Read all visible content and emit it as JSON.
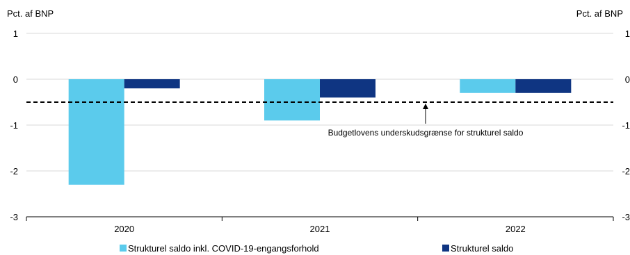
{
  "chart_data": {
    "type": "bar",
    "title": "",
    "ylabel_left": "Pct. af BNP",
    "ylabel_right": "Pct. af BNP",
    "categories": [
      "2020",
      "2021",
      "2022"
    ],
    "series": [
      {
        "name": "Strukturel saldo inkl. COVID-19-engangsforhold",
        "values": [
          -2.3,
          -0.9,
          -0.3
        ]
      },
      {
        "name": "Strukturel saldo",
        "values": [
          -0.2,
          -0.4,
          -0.3
        ]
      }
    ],
    "ylim": [
      -3,
      1
    ],
    "yticks": [
      "1",
      "0",
      "-1",
      "-2",
      "-3"
    ],
    "reference_line": {
      "value": -0.5,
      "style": "dashed",
      "annotation": "Budgetlovens underskudsgrænse for strukturel saldo"
    },
    "grid": true,
    "legend_position": "bottom",
    "colors": {
      "series_0": "#5bcbec",
      "series_1": "#0f3582",
      "grid": "#d9d9d9",
      "reference": "#000000"
    }
  }
}
